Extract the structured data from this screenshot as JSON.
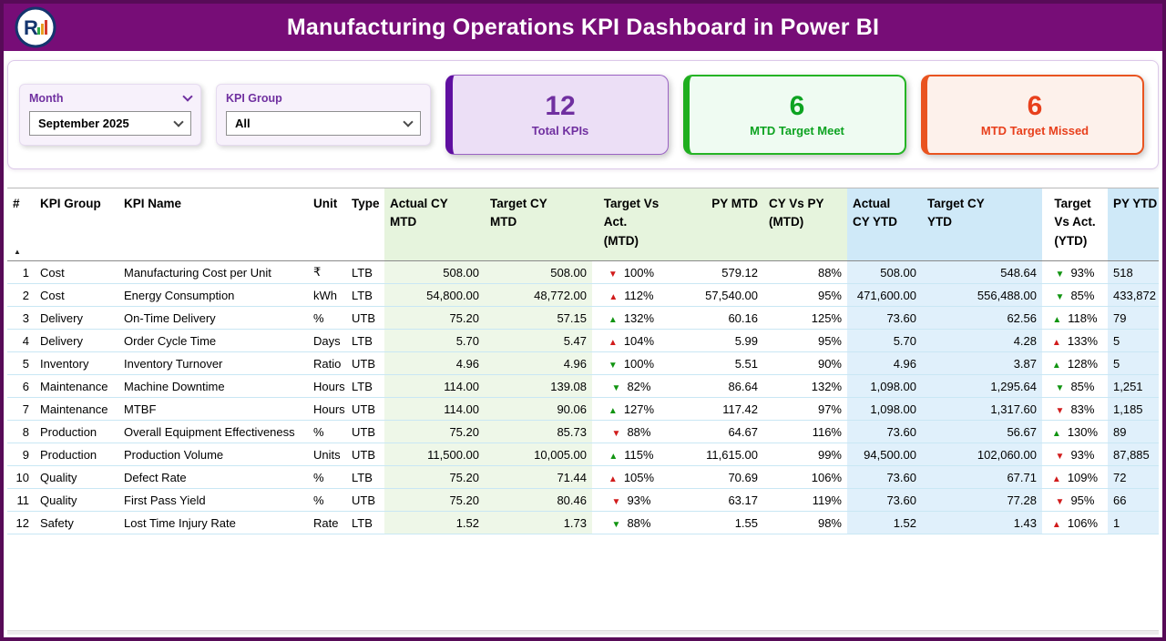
{
  "header": {
    "title": "Manufacturing Operations KPI Dashboard in Power BI",
    "logo_letter": "R"
  },
  "filters": {
    "month": {
      "label": "Month",
      "value": "September 2025"
    },
    "kpi_group": {
      "label": "KPI Group",
      "value": "All"
    }
  },
  "cards": [
    {
      "value": "12",
      "label": "Total KPIs"
    },
    {
      "value": "6",
      "label": "MTD Target Meet"
    },
    {
      "value": "6",
      "label": "MTD Target Missed"
    }
  ],
  "icons": {
    "dropdown_chevron": "⌄",
    "sort_ascending": "▲",
    "up_arrow": "▲",
    "down_arrow": "▼"
  },
  "colors": {
    "title_bar": "#770d77",
    "page_border": "#570b57",
    "accent_purple": "#7030a0",
    "good_green": "#119411",
    "bad_red": "#d11b1b",
    "mtd_header_tint": "#e6f4dd",
    "ytd_header_tint": "#cfe9f8",
    "card_meet_green": "#1fae1f",
    "card_missed_red": "#e95420"
  },
  "table": {
    "sort_indicator": "▲",
    "columns": [
      "#",
      "KPI Group",
      "KPI Name",
      "Unit",
      "Type",
      "Actual CY\nMTD",
      "Target CY\nMTD",
      "Target Vs\nAct.\n(MTD)",
      "PY MTD",
      "CY Vs PY\n(MTD)",
      "Actual\nCY YTD",
      "Target CY\nYTD",
      "Target\nVs Act.\n(YTD)",
      "PY YTD"
    ],
    "rows": [
      {
        "num": "1",
        "group": "Cost",
        "name": "Manufacturing Cost per Unit",
        "unit": "₹",
        "type": "LTB",
        "actual_mtd": "508.00",
        "target_mtd": "508.00",
        "tva_mtd_arrow": "▼",
        "tva_mtd_color": "red",
        "tva_mtd_pct": "100%",
        "py_mtd": "579.12",
        "cypy_mtd": "88%",
        "actual_ytd": "508.00",
        "target_ytd": "548.64",
        "tva_ytd_arrow": "▼",
        "tva_ytd_color": "green",
        "tva_ytd_pct": "93%",
        "py_ytd": "518"
      },
      {
        "num": "2",
        "group": "Cost",
        "name": "Energy Consumption",
        "unit": "kWh",
        "type": "LTB",
        "actual_mtd": "54,800.00",
        "target_mtd": "48,772.00",
        "tva_mtd_arrow": "▲",
        "tva_mtd_color": "red",
        "tva_mtd_pct": "112%",
        "py_mtd": "57,540.00",
        "cypy_mtd": "95%",
        "actual_ytd": "471,600.00",
        "target_ytd": "556,488.00",
        "tva_ytd_arrow": "▼",
        "tva_ytd_color": "green",
        "tva_ytd_pct": "85%",
        "py_ytd": "433,872"
      },
      {
        "num": "3",
        "group": "Delivery",
        "name": "On-Time Delivery",
        "unit": "%",
        "type": "UTB",
        "actual_mtd": "75.20",
        "target_mtd": "57.15",
        "tva_mtd_arrow": "▲",
        "tva_mtd_color": "green",
        "tva_mtd_pct": "132%",
        "py_mtd": "60.16",
        "cypy_mtd": "125%",
        "actual_ytd": "73.60",
        "target_ytd": "62.56",
        "tva_ytd_arrow": "▲",
        "tva_ytd_color": "green",
        "tva_ytd_pct": "118%",
        "py_ytd": "79"
      },
      {
        "num": "4",
        "group": "Delivery",
        "name": "Order Cycle Time",
        "unit": "Days",
        "type": "LTB",
        "actual_mtd": "5.70",
        "target_mtd": "5.47",
        "tva_mtd_arrow": "▲",
        "tva_mtd_color": "red",
        "tva_mtd_pct": "104%",
        "py_mtd": "5.99",
        "cypy_mtd": "95%",
        "actual_ytd": "5.70",
        "target_ytd": "4.28",
        "tva_ytd_arrow": "▲",
        "tva_ytd_color": "red",
        "tva_ytd_pct": "133%",
        "py_ytd": "5"
      },
      {
        "num": "5",
        "group": "Inventory",
        "name": "Inventory Turnover",
        "unit": "Ratio",
        "type": "UTB",
        "actual_mtd": "4.96",
        "target_mtd": "4.96",
        "tva_mtd_arrow": "▼",
        "tva_mtd_color": "green",
        "tva_mtd_pct": "100%",
        "py_mtd": "5.51",
        "cypy_mtd": "90%",
        "actual_ytd": "4.96",
        "target_ytd": "3.87",
        "tva_ytd_arrow": "▲",
        "tva_ytd_color": "green",
        "tva_ytd_pct": "128%",
        "py_ytd": "5"
      },
      {
        "num": "6",
        "group": "Maintenance",
        "name": "Machine Downtime",
        "unit": "Hours",
        "type": "LTB",
        "actual_mtd": "114.00",
        "target_mtd": "139.08",
        "tva_mtd_arrow": "▼",
        "tva_mtd_color": "green",
        "tva_mtd_pct": "82%",
        "py_mtd": "86.64",
        "cypy_mtd": "132%",
        "actual_ytd": "1,098.00",
        "target_ytd": "1,295.64",
        "tva_ytd_arrow": "▼",
        "tva_ytd_color": "green",
        "tva_ytd_pct": "85%",
        "py_ytd": "1,251"
      },
      {
        "num": "7",
        "group": "Maintenance",
        "name": "MTBF",
        "unit": "Hours",
        "type": "UTB",
        "actual_mtd": "114.00",
        "target_mtd": "90.06",
        "tva_mtd_arrow": "▲",
        "tva_mtd_color": "green",
        "tva_mtd_pct": "127%",
        "py_mtd": "117.42",
        "cypy_mtd": "97%",
        "actual_ytd": "1,098.00",
        "target_ytd": "1,317.60",
        "tva_ytd_arrow": "▼",
        "tva_ytd_color": "red",
        "tva_ytd_pct": "83%",
        "py_ytd": "1,185"
      },
      {
        "num": "8",
        "group": "Production",
        "name": "Overall Equipment Effectiveness",
        "unit": "%",
        "type": "UTB",
        "actual_mtd": "75.20",
        "target_mtd": "85.73",
        "tva_mtd_arrow": "▼",
        "tva_mtd_color": "red",
        "tva_mtd_pct": "88%",
        "py_mtd": "64.67",
        "cypy_mtd": "116%",
        "actual_ytd": "73.60",
        "target_ytd": "56.67",
        "tva_ytd_arrow": "▲",
        "tva_ytd_color": "green",
        "tva_ytd_pct": "130%",
        "py_ytd": "89"
      },
      {
        "num": "9",
        "group": "Production",
        "name": "Production Volume",
        "unit": "Units",
        "type": "UTB",
        "actual_mtd": "11,500.00",
        "target_mtd": "10,005.00",
        "tva_mtd_arrow": "▲",
        "tva_mtd_color": "green",
        "tva_mtd_pct": "115%",
        "py_mtd": "11,615.00",
        "cypy_mtd": "99%",
        "actual_ytd": "94,500.00",
        "target_ytd": "102,060.00",
        "tva_ytd_arrow": "▼",
        "tva_ytd_color": "red",
        "tva_ytd_pct": "93%",
        "py_ytd": "87,885"
      },
      {
        "num": "10",
        "group": "Quality",
        "name": "Defect Rate",
        "unit": "%",
        "type": "LTB",
        "actual_mtd": "75.20",
        "target_mtd": "71.44",
        "tva_mtd_arrow": "▲",
        "tva_mtd_color": "red",
        "tva_mtd_pct": "105%",
        "py_mtd": "70.69",
        "cypy_mtd": "106%",
        "actual_ytd": "73.60",
        "target_ytd": "67.71",
        "tva_ytd_arrow": "▲",
        "tva_ytd_color": "red",
        "tva_ytd_pct": "109%",
        "py_ytd": "72"
      },
      {
        "num": "11",
        "group": "Quality",
        "name": "First Pass Yield",
        "unit": "%",
        "type": "UTB",
        "actual_mtd": "75.20",
        "target_mtd": "80.46",
        "tva_mtd_arrow": "▼",
        "tva_mtd_color": "red",
        "tva_mtd_pct": "93%",
        "py_mtd": "63.17",
        "cypy_mtd": "119%",
        "actual_ytd": "73.60",
        "target_ytd": "77.28",
        "tva_ytd_arrow": "▼",
        "tva_ytd_color": "red",
        "tva_ytd_pct": "95%",
        "py_ytd": "66"
      },
      {
        "num": "12",
        "group": "Safety",
        "name": "Lost Time Injury Rate",
        "unit": "Rate",
        "type": "LTB",
        "actual_mtd": "1.52",
        "target_mtd": "1.73",
        "tva_mtd_arrow": "▼",
        "tva_mtd_color": "green",
        "tva_mtd_pct": "88%",
        "py_mtd": "1.55",
        "cypy_mtd": "98%",
        "actual_ytd": "1.52",
        "target_ytd": "1.43",
        "tva_ytd_arrow": "▲",
        "tva_ytd_color": "red",
        "tva_ytd_pct": "106%",
        "py_ytd": "1"
      }
    ]
  }
}
